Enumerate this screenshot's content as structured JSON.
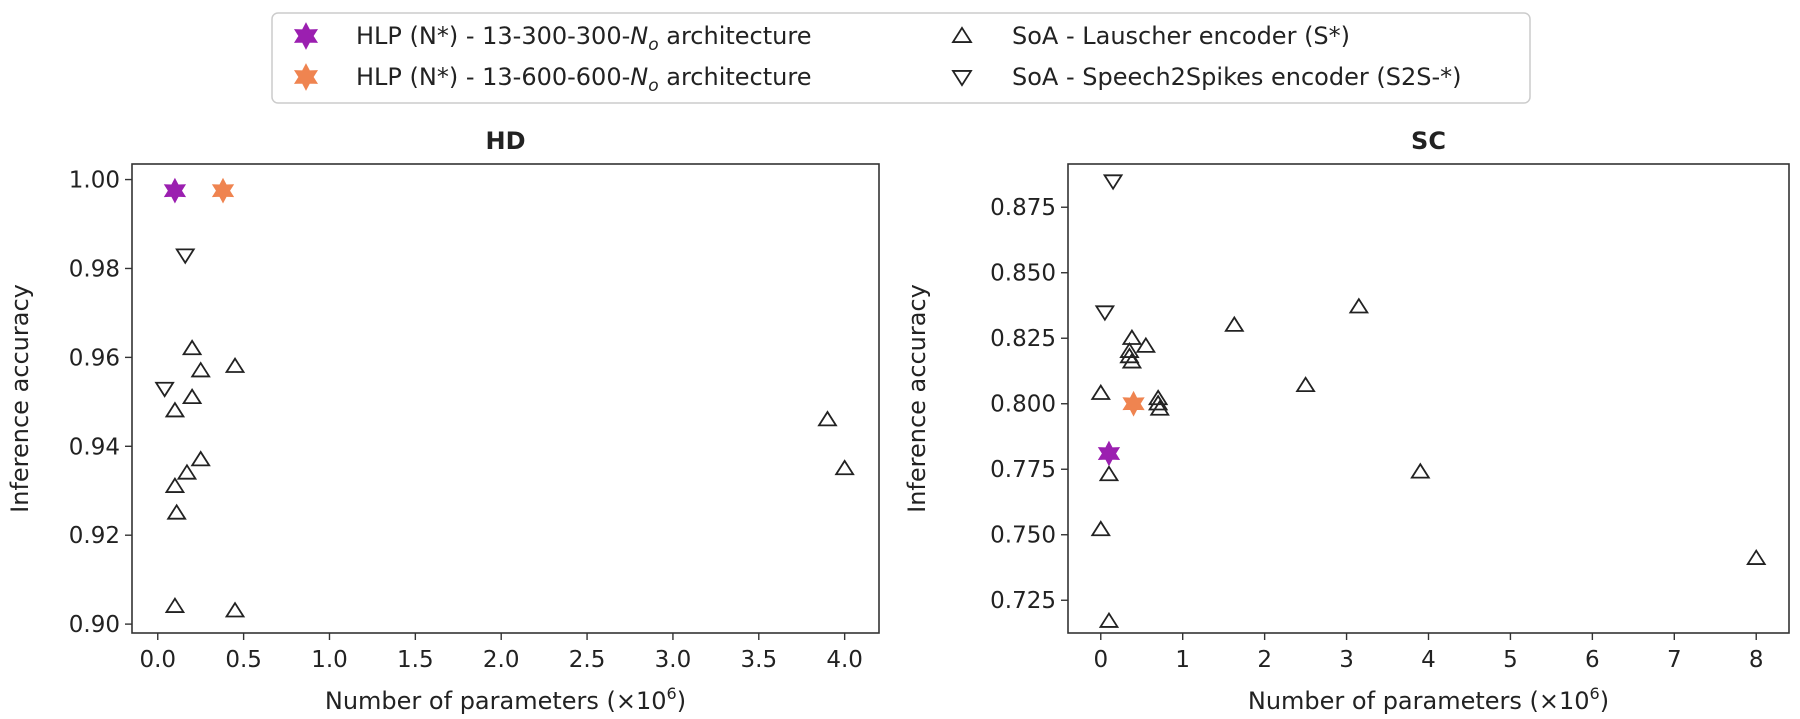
{
  "legend": {
    "items": [
      {
        "marker": "star",
        "color": "#9b1fb0",
        "prefix": "HLP (N*) - 13-300-300-",
        "sym": "N",
        "sub": "o",
        "suffix": " architecture"
      },
      {
        "marker": "star",
        "color": "#ef8450",
        "prefix": "HLP (N*) - 13-600-600-",
        "sym": "N",
        "sub": "o",
        "suffix": " architecture"
      },
      {
        "marker": "triangle-up",
        "color": "#222222",
        "label": "SoA - Lauscher encoder (S*)"
      },
      {
        "marker": "triangle-down",
        "color": "#222222",
        "label": "SoA - Speech2Spikes encoder (S2S-*)"
      }
    ]
  },
  "chart_data": [
    {
      "type": "scatter",
      "title": "HD",
      "xlabel": "Number of parameters (×10",
      "xlabel_sup": "6",
      "xlabel_end": ")",
      "ylabel": "Inference accuracy",
      "xlim": [
        -0.15,
        4.2
      ],
      "ylim": [
        0.898,
        1.0035
      ],
      "xticks": [
        "0.0",
        "0.5",
        "1.0",
        "1.5",
        "2.0",
        "2.5",
        "3.0",
        "3.5",
        "4.0"
      ],
      "xtick_values": [
        0.0,
        0.5,
        1.0,
        1.5,
        2.0,
        2.5,
        3.0,
        3.5,
        4.0
      ],
      "yticks": [
        "0.90",
        "0.92",
        "0.94",
        "0.96",
        "0.98",
        "1.00"
      ],
      "ytick_values": [
        0.9,
        0.92,
        0.94,
        0.96,
        0.98,
        1.0
      ],
      "series": [
        {
          "marker": "star",
          "color": "#9b1fb0",
          "points": [
            [
              0.1,
              0.9975
            ]
          ]
        },
        {
          "marker": "star",
          "color": "#ef8450",
          "points": [
            [
              0.38,
              0.9975
            ]
          ]
        },
        {
          "marker": "triangle-up",
          "color": "#222222",
          "points": [
            [
              0.2,
              0.962
            ],
            [
              0.25,
              0.957
            ],
            [
              0.45,
              0.958
            ],
            [
              0.2,
              0.951
            ],
            [
              0.1,
              0.948
            ],
            [
              0.25,
              0.937
            ],
            [
              0.17,
              0.934
            ],
            [
              0.1,
              0.931
            ],
            [
              0.11,
              0.925
            ],
            [
              0.1,
              0.904
            ],
            [
              0.45,
              0.903
            ],
            [
              3.9,
              0.946
            ],
            [
              4.0,
              0.935
            ]
          ]
        },
        {
          "marker": "triangle-down",
          "color": "#222222",
          "points": [
            [
              0.16,
              0.983
            ],
            [
              0.04,
              0.953
            ]
          ]
        }
      ]
    },
    {
      "type": "scatter",
      "title": "SC",
      "xlabel": "Number of parameters (×10",
      "xlabel_sup": "6",
      "xlabel_end": ")",
      "ylabel": "Inference accuracy",
      "xlim": [
        -0.4,
        8.4
      ],
      "ylim": [
        0.7125,
        0.8915
      ],
      "xticks": [
        "0",
        "1",
        "2",
        "3",
        "4",
        "5",
        "6",
        "7",
        "8"
      ],
      "xtick_values": [
        0,
        1,
        2,
        3,
        4,
        5,
        6,
        7,
        8
      ],
      "yticks": [
        "0.725",
        "0.750",
        "0.775",
        "0.800",
        "0.825",
        "0.850",
        "0.875"
      ],
      "ytick_values": [
        0.725,
        0.75,
        0.775,
        0.8,
        0.825,
        0.85,
        0.875
      ],
      "series": [
        {
          "marker": "star",
          "color": "#9b1fb0",
          "points": [
            [
              0.1,
              0.781
            ]
          ]
        },
        {
          "marker": "star",
          "color": "#ef8450",
          "points": [
            [
              0.4,
              0.8
            ]
          ]
        },
        {
          "marker": "triangle-up",
          "color": "#222222",
          "points": [
            [
              0.38,
              0.825
            ],
            [
              0.55,
              0.822
            ],
            [
              0.35,
              0.82
            ],
            [
              0.35,
              0.818
            ],
            [
              0.38,
              0.816
            ],
            [
              0.0,
              0.804
            ],
            [
              0.7,
              0.802
            ],
            [
              0.7,
              0.8
            ],
            [
              0.72,
              0.798
            ],
            [
              0.1,
              0.773
            ],
            [
              0.0,
              0.752
            ],
            [
              0.1,
              0.717
            ],
            [
              1.63,
              0.83
            ],
            [
              2.5,
              0.807
            ],
            [
              3.15,
              0.837
            ],
            [
              3.9,
              0.774
            ],
            [
              8.0,
              0.741
            ]
          ]
        },
        {
          "marker": "triangle-down",
          "color": "#222222",
          "points": [
            [
              0.15,
              0.885
            ],
            [
              0.05,
              0.835
            ]
          ]
        }
      ]
    }
  ]
}
